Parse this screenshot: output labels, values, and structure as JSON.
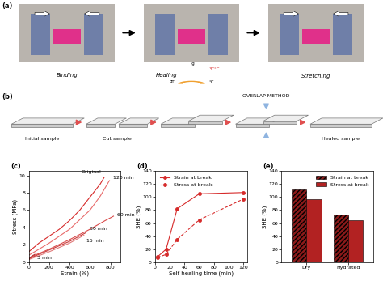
{
  "panel_a": {
    "label": "(a)",
    "steps": [
      "Binding",
      "Healing",
      "Stretching"
    ],
    "thermometer": {
      "labels": [
        "RT",
        "Tg",
        "37°C",
        "°C"
      ]
    }
  },
  "panel_b": {
    "label": "(b)",
    "stages": [
      {
        "label": "Initial sample"
      },
      {
        "label": "Cut sample"
      },
      {
        "label": null
      },
      {
        "label": null,
        "note": "OVERLAP METHOD"
      },
      {
        "label": "Healed sample"
      }
    ]
  },
  "chart_data": [
    {
      "type": "line",
      "title": "(c)",
      "x_label": "Strain (%)",
      "y_label": "Stress (MPa)",
      "xlim": [
        0,
        900
      ],
      "xticks": [
        0,
        200,
        400,
        600,
        800
      ],
      "ylim": [
        0,
        10.5
      ],
      "yticks": [
        0,
        2,
        4,
        6,
        8,
        10
      ],
      "series": [
        {
          "name": "Original",
          "color": "#d62a2a",
          "x": [
            0,
            100,
            200,
            300,
            400,
            500,
            600,
            700,
            740
          ],
          "values": [
            1.2,
            2.2,
            3.0,
            3.8,
            4.8,
            6.0,
            7.5,
            9.0,
            9.8
          ]
        },
        {
          "name": "120 min",
          "color": "#e86a6a",
          "x": [
            0,
            200,
            400,
            600,
            700,
            790
          ],
          "values": [
            0.8,
            2.2,
            3.8,
            6.0,
            7.6,
            9.4
          ]
        },
        {
          "name": "60 min",
          "color": "#d94a4a",
          "x": [
            0,
            200,
            400,
            600,
            750,
            830
          ],
          "values": [
            0.5,
            1.5,
            2.6,
            3.8,
            4.8,
            5.3
          ]
        },
        {
          "name": "30 min",
          "color": "#c83c3c",
          "x": [
            0,
            200,
            400,
            560
          ],
          "values": [
            0.4,
            1.4,
            2.4,
            3.4
          ]
        },
        {
          "name": "15 min",
          "color": "#e07a7a",
          "x": [
            0,
            200,
            400,
            540
          ],
          "values": [
            0.3,
            1.2,
            2.2,
            3.1
          ]
        },
        {
          "name": "3 min",
          "color": "#b83030",
          "x": [
            0,
            30,
            60
          ],
          "values": [
            0.3,
            0.7,
            0.9
          ]
        }
      ]
    },
    {
      "type": "line",
      "title": "(d)",
      "x_label": "Self-healing time (min)",
      "y_label": "SHE (%)",
      "xlim": [
        0,
        125
      ],
      "xticks": [
        0,
        20,
        40,
        60,
        80,
        100,
        120
      ],
      "ylim": [
        0,
        140
      ],
      "yticks": [
        0,
        20,
        40,
        60,
        80,
        100,
        120,
        140
      ],
      "legend": "upper left",
      "x": [
        3,
        15,
        30,
        60,
        120
      ],
      "series": [
        {
          "name": "Strain at break",
          "color": "#d62a2a",
          "marker": "o",
          "line_style": "solid",
          "values": [
            8,
            20,
            82,
            105,
            107
          ]
        },
        {
          "name": "Stress at break",
          "color": "#d62a2a",
          "marker": "o",
          "line_style": "dashed",
          "values": [
            7,
            12,
            35,
            65,
            97
          ]
        }
      ]
    },
    {
      "type": "bar",
      "title": "(e)",
      "y_label": "SHE (%)",
      "categories": [
        "Dry",
        "Hydrated"
      ],
      "ylim": [
        0,
        140
      ],
      "yticks": [
        0,
        20,
        40,
        60,
        80,
        100,
        120,
        140
      ],
      "legend": "upper right",
      "series": [
        {
          "name": "Strain at break",
          "color": "#8b1a1a",
          "values": [
            112,
            73
          ]
        },
        {
          "name": "Stress at break",
          "color": "#b22222",
          "values": [
            97,
            65
          ]
        }
      ]
    }
  ]
}
